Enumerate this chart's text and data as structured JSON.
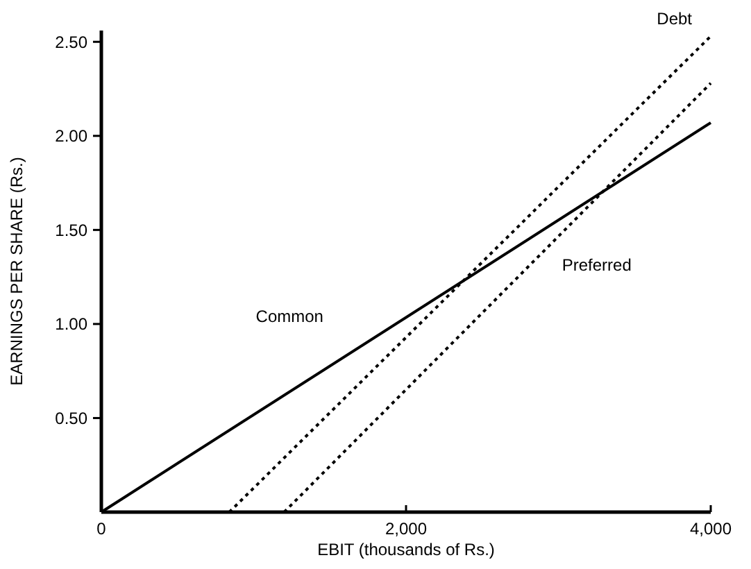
{
  "chart_data": {
    "type": "line",
    "xlabel": "EBIT (thousands of Rs.)",
    "ylabel": "EARNINGS PER SHARE (Rs.)",
    "xlim": [
      0,
      4000
    ],
    "ylim": [
      0,
      2.56
    ],
    "xticks": [
      0,
      {
        "value": 2000,
        "label": "2,000"
      },
      {
        "value": 4000,
        "label": "4,000"
      }
    ],
    "yticks": [
      {
        "value": 0.5,
        "label": "0.50"
      },
      {
        "value": 1,
        "label": "1.00"
      },
      {
        "value": 1.5,
        "label": "1.50"
      },
      {
        "value": 2,
        "label": "2.00"
      },
      {
        "value": 2.5,
        "label": "2.50"
      }
    ],
    "grid": false,
    "marker": "none",
    "series": [
      {
        "name": "Common",
        "color": "#000000",
        "line_style": "solid",
        "x": [
          0,
          4000
        ],
        "values": [
          0,
          2.07
        ]
      },
      {
        "name": "Debt",
        "color": "#000000",
        "line_style": "dotted",
        "x": [
          840,
          4000
        ],
        "values": [
          0,
          2.53
        ]
      },
      {
        "name": "Preferred",
        "color": "#000000",
        "line_style": "dotted",
        "x": [
          1200,
          4000
        ],
        "values": [
          0,
          2.28
        ]
      }
    ]
  }
}
